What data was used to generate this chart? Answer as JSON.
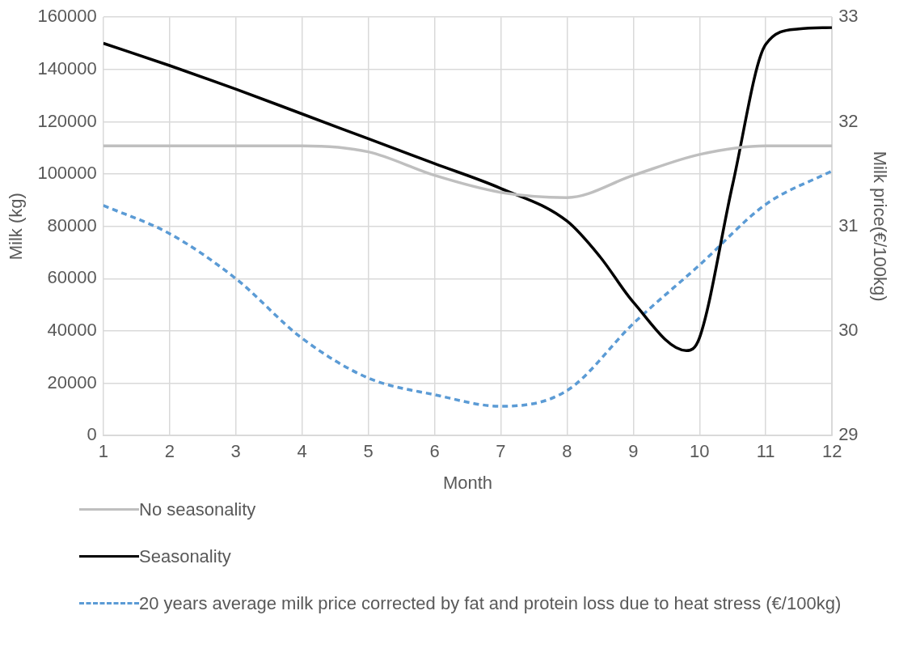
{
  "chart_data": {
    "type": "line",
    "xlabel": "Month",
    "ylabel": "Milk (kg)",
    "y2label": "Milk price(€/100kg)",
    "x": [
      1,
      2,
      3,
      4,
      5,
      6,
      7,
      8,
      9,
      10,
      11,
      12
    ],
    "xlim": [
      1,
      12
    ],
    "xticks": [
      1,
      2,
      3,
      4,
      5,
      6,
      7,
      8,
      9,
      10,
      11,
      12
    ],
    "ylim": [
      0,
      160000
    ],
    "yticks": [
      0,
      20000,
      40000,
      60000,
      80000,
      100000,
      120000,
      140000,
      160000
    ],
    "y2lim": [
      29,
      33
    ],
    "y2ticks": [
      29,
      30,
      31,
      32,
      33
    ],
    "grid": true,
    "legend": "bottom",
    "marker": "none",
    "series": [
      {
        "name": "No seasonality",
        "color": "#bfbfbf",
        "values": [
          110800,
          110800,
          110800,
          110800,
          108500,
          99500,
          93000,
          91000,
          99500,
          107500,
          110800,
          110800
        ]
      },
      {
        "name": "Seasonality",
        "color": "#000000",
        "x": [
          1,
          2,
          3,
          4,
          5,
          6,
          7,
          8,
          8.5,
          9,
          9.8,
          10,
          10.5,
          11,
          11.5,
          12
        ],
        "values": [
          150000,
          141500,
          132500,
          123000,
          113500,
          104000,
          94500,
          82000,
          68300,
          51000,
          32500,
          37400,
          96000,
          149600,
          155500,
          156000
        ]
      },
      {
        "name": "20 years average milk price corrected by fat and protein loss due to heat stress (€/100kg)",
        "color": "#5b9bd5",
        "axis": "y2",
        "line_style": "dashed",
        "values": [
          31.2,
          30.93,
          30.5,
          29.93,
          29.55,
          29.39,
          29.28,
          29.43,
          30.07,
          30.63,
          31.21,
          31.53
        ]
      }
    ]
  }
}
